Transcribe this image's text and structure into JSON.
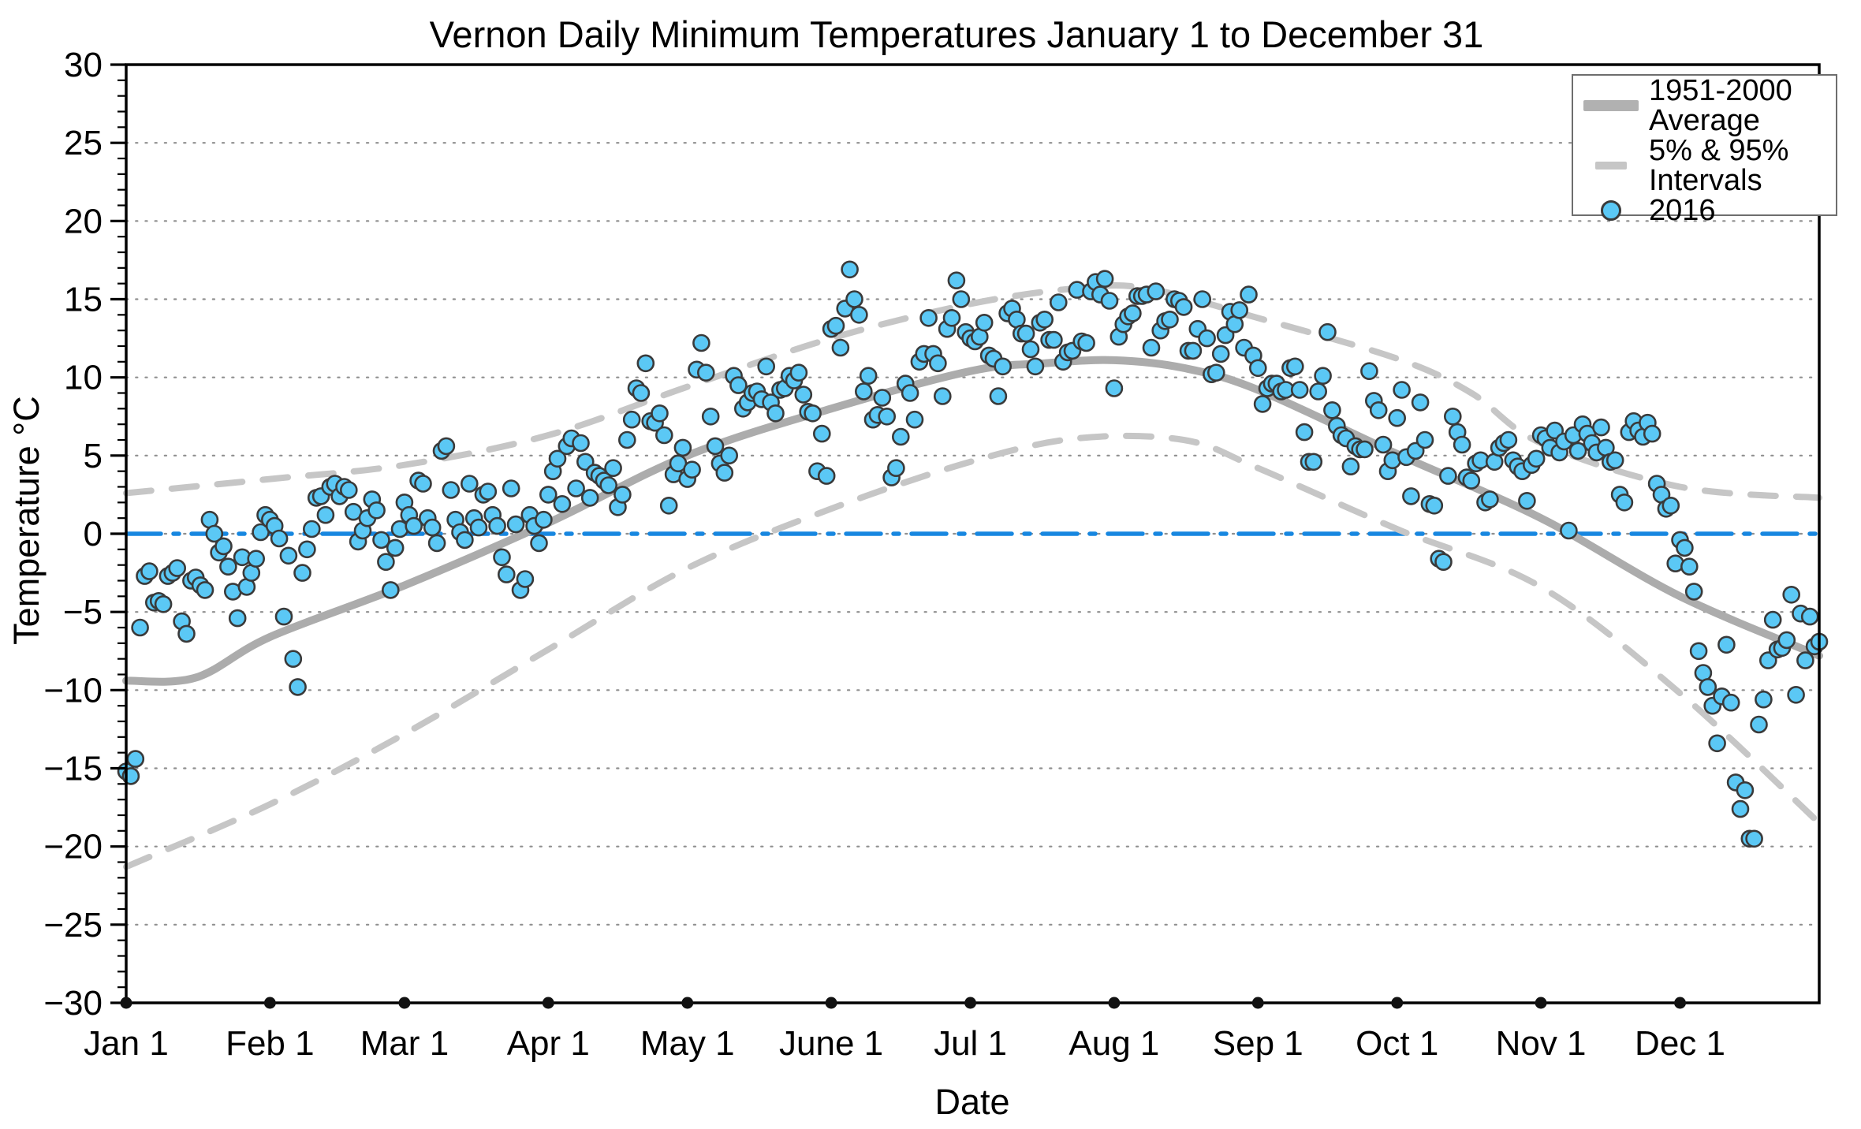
{
  "title": "Vernon Daily Minimum Temperatures January 1 to December 31",
  "xlabel": "Date",
  "ylabel": "Temperature °C",
  "legend": {
    "items": [
      {
        "label": "1951-2000 Average",
        "swatch": "thick-gray-line"
      },
      {
        "label": "5% & 95% Intervals",
        "swatch": "gray-dash"
      },
      {
        "label": "2016",
        "swatch": "blue-circle-marker"
      }
    ]
  },
  "colors": {
    "scatter_fill": "#5bc8f5",
    "scatter_edge": "#3a3a3a",
    "average_line": "#acacac",
    "interval_line": "#c6c6c6",
    "zero_line": "#1787e0",
    "grid_dots": "#8f8f8f",
    "axis": "#000000",
    "month_dot": "#111111"
  },
  "chart_data": {
    "type": "scatter",
    "title": "Vernon Daily Minimum Temperatures January 1 to December 31",
    "xlabel": "Date",
    "ylabel": "Temperature °C",
    "ylim": [
      -30,
      30
    ],
    "xlim_days": [
      0,
      365
    ],
    "grid": "horizontal dotted every 5°C",
    "legend_position": "top-right",
    "y_ticks": {
      "values": [
        30,
        25,
        20,
        15,
        10,
        5,
        0,
        -5,
        -10,
        -15,
        -20,
        -25,
        -30
      ],
      "labels": [
        "30",
        "25",
        "20",
        "15",
        "10",
        "5",
        "0",
        "−5",
        "−10",
        "−15",
        "−20",
        "−25",
        "−30"
      ],
      "minor_step": 1
    },
    "x_ticks": {
      "labels": [
        "Jan 1",
        "Feb 1",
        "Mar 1",
        "Apr 1",
        "May 1",
        "June 1",
        "Jul 1",
        "Aug 1",
        "Sep 1",
        "Oct 1",
        "Nov 1",
        "Dec 1"
      ],
      "days": [
        0,
        31,
        60,
        91,
        121,
        152,
        182,
        213,
        244,
        274,
        305,
        335
      ]
    },
    "reference_line": {
      "name": "0 °C line",
      "value": 0,
      "style": "dash-dot",
      "color": "#1787e0"
    },
    "series": [
      {
        "name": "1951-2000 Average",
        "type": "line",
        "x": [
          0,
          15,
          31,
          60,
          91,
          121,
          152,
          182,
          198,
          213,
          228,
          244,
          274,
          305,
          335,
          365
        ],
        "values": [
          -9.4,
          -9.2,
          -6.6,
          -3.3,
          0.7,
          5.0,
          8.0,
          10.4,
          10.9,
          11.1,
          10.6,
          9.2,
          5.1,
          1.0,
          -4.0,
          -7.8
        ]
      },
      {
        "name": "95% Interval (upper)",
        "type": "dashed-line",
        "x": [
          0,
          31,
          60,
          91,
          121,
          152,
          182,
          205,
          220,
          244,
          274,
          290,
          305,
          335,
          365
        ],
        "values": [
          2.6,
          3.5,
          4.4,
          6.3,
          9.4,
          12.5,
          14.7,
          15.7,
          15.7,
          13.8,
          11.2,
          9.0,
          5.8,
          3.0,
          2.3
        ]
      },
      {
        "name": "5% Interval (lower)",
        "type": "dashed-line",
        "x": [
          0,
          31,
          60,
          91,
          121,
          152,
          182,
          205,
          228,
          244,
          274,
          305,
          335,
          365
        ],
        "values": [
          -21.3,
          -17.3,
          -12.8,
          -7.4,
          -2.2,
          1.6,
          4.6,
          6.1,
          6.0,
          4.2,
          0.3,
          -3.4,
          -10.2,
          -18.5
        ]
      },
      {
        "name": "2016",
        "type": "scatter",
        "x_start_day": 0,
        "values": [
          -15.2,
          -15.5,
          -14.4,
          -6.0,
          -2.7,
          -2.4,
          -4.4,
          -4.3,
          -4.5,
          -2.7,
          -2.5,
          -2.2,
          -5.6,
          -6.4,
          -3.0,
          -2.8,
          -3.3,
          -3.6,
          0.9,
          0.0,
          -1.2,
          -0.8,
          -2.1,
          -3.7,
          -5.4,
          -1.5,
          -3.4,
          -2.5,
          -1.6,
          0.1,
          1.2,
          0.9,
          0.5,
          -0.3,
          -5.3,
          -1.4,
          -8.0,
          -9.8,
          -2.5,
          -1.0,
          0.3,
          2.3,
          2.4,
          1.2,
          3.0,
          3.2,
          2.4,
          3.0,
          2.8,
          1.4,
          -0.5,
          0.2,
          1.0,
          2.2,
          1.5,
          -0.4,
          -1.8,
          -3.6,
          -0.9,
          0.3,
          2.0,
          1.2,
          0.5,
          3.4,
          3.2,
          1.0,
          0.4,
          -0.6,
          5.3,
          5.6,
          2.8,
          0.9,
          0.1,
          -0.4,
          3.2,
          1.0,
          0.4,
          2.5,
          2.7,
          1.2,
          0.5,
          -1.5,
          -2.6,
          2.9,
          0.6,
          -3.6,
          -2.9,
          1.2,
          0.5,
          -0.6,
          0.9,
          2.5,
          4.0,
          4.8,
          1.9,
          5.6,
          6.1,
          2.9,
          5.8,
          4.6,
          2.3,
          3.9,
          3.7,
          3.4,
          3.1,
          4.2,
          1.7,
          2.5,
          6.0,
          7.3,
          9.3,
          9.0,
          10.9,
          7.2,
          7.1,
          7.7,
          6.3,
          1.8,
          3.8,
          4.5,
          5.5,
          3.5,
          4.1,
          10.5,
          12.2,
          10.3,
          7.5,
          5.6,
          4.5,
          3.9,
          5.0,
          10.1,
          9.5,
          8.0,
          8.4,
          9.0,
          9.1,
          8.6,
          10.7,
          8.4,
          7.7,
          9.2,
          9.3,
          10.1,
          9.8,
          10.3,
          8.9,
          7.8,
          7.7,
          4.0,
          6.4,
          3.7,
          13.1,
          13.3,
          11.9,
          14.4,
          16.9,
          15.0,
          14.0,
          9.1,
          10.1,
          7.3,
          7.6,
          8.7,
          7.5,
          3.6,
          4.2,
          6.2,
          9.6,
          9.0,
          7.3,
          11.0,
          11.5,
          13.8,
          11.5,
          10.9,
          8.8,
          13.1,
          13.8,
          16.2,
          15.0,
          12.9,
          12.5,
          12.3,
          12.6,
          13.5,
          11.4,
          11.2,
          8.8,
          10.7,
          14.1,
          14.4,
          13.7,
          12.8,
          12.8,
          11.8,
          10.7,
          13.5,
          13.7,
          12.4,
          12.4,
          14.8,
          11.0,
          11.6,
          11.7,
          15.6,
          12.3,
          12.2,
          15.5,
          16.1,
          15.3,
          16.3,
          14.9,
          9.3,
          12.6,
          13.4,
          13.9,
          14.1,
          15.2,
          15.2,
          15.3,
          11.9,
          15.5,
          13.0,
          13.6,
          13.7,
          15.0,
          14.9,
          14.5,
          11.7,
          11.7,
          13.1,
          15.0,
          12.5,
          10.2,
          10.3,
          11.5,
          12.7,
          14.2,
          13.4,
          14.3,
          11.9,
          15.3,
          11.4,
          10.6,
          8.3,
          9.3,
          9.6,
          9.6,
          9.1,
          9.2,
          10.6,
          10.7,
          9.2,
          6.5,
          4.6,
          4.6,
          9.1,
          10.1,
          12.9,
          7.9,
          6.9,
          6.3,
          6.1,
          4.3,
          5.6,
          5.4,
          5.4,
          10.4,
          8.5,
          7.9,
          5.7,
          4.0,
          4.7,
          7.4,
          9.2,
          4.9,
          2.4,
          5.3,
          8.4,
          6.0,
          1.9,
          1.8,
          -1.6,
          -1.8,
          3.7,
          7.5,
          6.5,
          5.7,
          3.6,
          3.4,
          4.5,
          4.7,
          2.0,
          2.2,
          4.6,
          5.5,
          5.8,
          6.0,
          4.7,
          4.3,
          4.0,
          2.1,
          4.4,
          4.8,
          6.3,
          6.1,
          5.5,
          6.6,
          5.2,
          5.9,
          0.2,
          6.3,
          5.3,
          7.0,
          6.4,
          5.8,
          5.2,
          6.8,
          5.5,
          4.6,
          4.7,
          2.5,
          2.0,
          6.5,
          7.2,
          6.6,
          6.2,
          7.1,
          6.4,
          3.2,
          2.5,
          1.6,
          1.8,
          -1.9,
          -0.4,
          -0.9,
          -2.1,
          -3.7,
          -7.5,
          -8.9,
          -9.8,
          -11.0,
          -13.4,
          -10.4,
          -7.1,
          -10.8,
          -15.9,
          -17.6,
          -16.4,
          -19.5,
          -19.5,
          -12.2,
          -10.6,
          -8.1,
          -5.5,
          -7.4,
          -7.3,
          -6.8,
          -3.9,
          -10.3,
          -5.1,
          -8.1,
          -5.3,
          -7.2,
          -6.9
        ]
      }
    ]
  }
}
